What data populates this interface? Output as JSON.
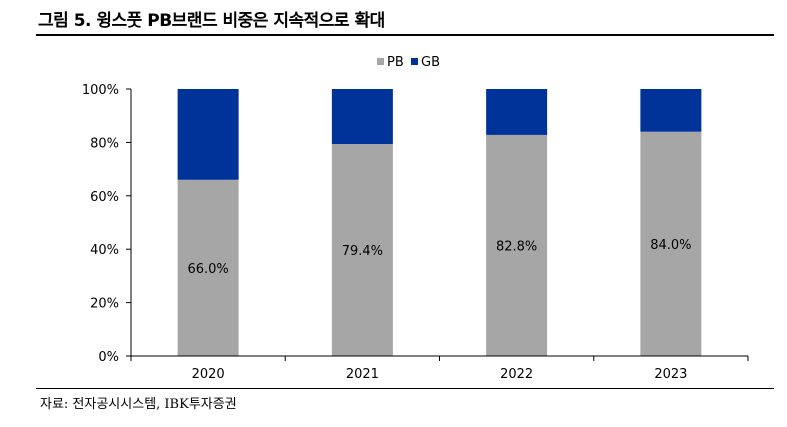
{
  "header": {
    "title": "그림 5. 윙스풋 PB브랜드 비중은 지속적으로 확대"
  },
  "footer": {
    "source": "자료: 전자공시시스템, IBK투자증권"
  },
  "colors": {
    "pb": "#a6a6a6",
    "gb": "#003399",
    "axis": "#000000"
  },
  "chart_data": {
    "type": "bar",
    "stacked": true,
    "categories": [
      "2020",
      "2021",
      "2022",
      "2023"
    ],
    "series": [
      {
        "name": "PB",
        "values": [
          66.0,
          79.4,
          82.8,
          84.0
        ],
        "labels": [
          "66.0%",
          "79.4%",
          "82.8%",
          "84.0%"
        ]
      },
      {
        "name": "GB",
        "values": [
          34.0,
          20.6,
          17.2,
          16.0
        ]
      }
    ],
    "yticks": [
      "0%",
      "20%",
      "40%",
      "60%",
      "80%",
      "100%"
    ],
    "ytick_values": [
      0,
      20,
      40,
      60,
      80,
      100
    ],
    "ylim": [
      0,
      100
    ],
    "legend_position": "top-center",
    "title": "그림 5. 윙스풋 PB브랜드 비중은 지속적으로 확대",
    "xlabel": "",
    "ylabel": ""
  }
}
